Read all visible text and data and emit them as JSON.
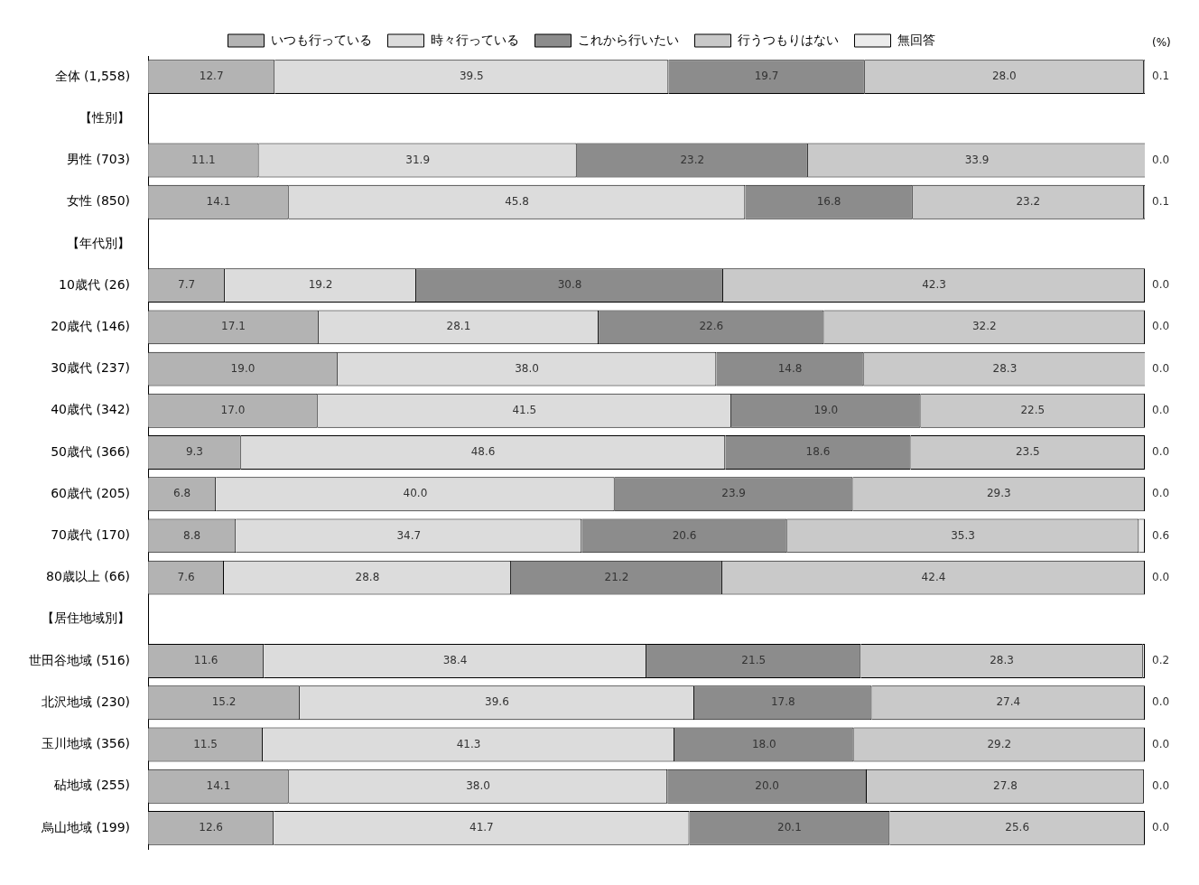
{
  "chart_data": {
    "type": "bar",
    "orientation": "horizontal",
    "stacked": true,
    "legend": "top",
    "grid": false,
    "xlim": [
      0,
      100
    ],
    "annotations": [
      "(%)"
    ],
    "categories": [
      "全体 (1,558)",
      "【性別】",
      "男性 (703)",
      "女性 (850)",
      "【年代別】",
      "10歳代 (26)",
      "20歳代 (146)",
      "30歳代 (237)",
      "40歳代 (342)",
      "50歳代 (366)",
      "60歳代 (205)",
      "70歳代 (170)",
      "80歳以上 (66)",
      "【居住地域別】",
      "世田谷地域 (516)",
      "北沢地域 (230)",
      "玉川地域 (356)",
      "砧地域 (255)",
      "烏山地域 (199)"
    ],
    "series": [
      {
        "name": "いつも行っている",
        "color": "#b3b3b3",
        "values": [
          12.7,
          null,
          11.1,
          14.1,
          null,
          7.7,
          17.1,
          19.0,
          17.0,
          9.3,
          6.8,
          8.8,
          7.6,
          null,
          11.6,
          15.2,
          11.5,
          14.1,
          12.6
        ],
        "value_labels": [
          "12.7",
          null,
          "11.1",
          "14.1",
          null,
          "7.7",
          "17.1",
          "19.0",
          "17.0",
          "9.3",
          "6.8",
          "8.8",
          "7.6",
          null,
          "11.6",
          "15.2",
          "11.5",
          "14.1",
          "12.6"
        ]
      },
      {
        "name": "時々行っている",
        "color": "#dcdcdc",
        "values": [
          39.5,
          null,
          31.9,
          45.8,
          null,
          19.2,
          28.1,
          38.0,
          41.5,
          48.6,
          40.0,
          34.7,
          28.8,
          null,
          38.4,
          39.6,
          41.3,
          38.0,
          41.7
        ],
        "value_labels": [
          "39.5",
          null,
          "31.9",
          "45.8",
          null,
          "19.2",
          "28.1",
          "38.0",
          "41.5",
          "48.6",
          "40.0",
          "34.7",
          "28.8",
          null,
          "38.4",
          "39.6",
          "41.3",
          "38.0",
          "41.7"
        ]
      },
      {
        "name": "これから行いたい",
        "color": "#8c8c8c",
        "values": [
          19.7,
          null,
          23.2,
          16.8,
          null,
          30.8,
          22.6,
          14.8,
          19.0,
          18.6,
          23.9,
          20.6,
          21.2,
          null,
          21.5,
          17.8,
          18.0,
          20.0,
          20.1
        ],
        "value_labels": [
          "19.7",
          null,
          "23.2",
          "16.8",
          null,
          "30.8",
          "22.6",
          "14.8",
          "19.0",
          "18.6",
          "23.9",
          "20.6",
          "21.2",
          null,
          "21.5",
          "17.8",
          "18.0",
          "20.0",
          "20.1"
        ]
      },
      {
        "name": "行うつもりはない",
        "color": "#c9c9c9",
        "values": [
          28.0,
          null,
          33.9,
          23.2,
          null,
          42.3,
          32.2,
          28.3,
          22.5,
          23.5,
          29.3,
          35.3,
          42.4,
          null,
          28.3,
          27.4,
          29.2,
          27.8,
          25.6
        ],
        "value_labels": [
          "28.0",
          null,
          "33.9",
          "23.2",
          null,
          "42.3",
          "32.2",
          "28.3",
          "22.5",
          "23.5",
          "29.3",
          "35.3",
          "42.4",
          null,
          "28.3",
          "27.4",
          "29.2",
          "27.8",
          "25.6"
        ]
      },
      {
        "name": "無回答",
        "color": "#ececec",
        "values": [
          0.1,
          null,
          0.0,
          0.1,
          null,
          0.0,
          0.0,
          0.0,
          0.0,
          0.0,
          0.0,
          0.6,
          0.0,
          null,
          0.2,
          0.0,
          0.0,
          0.0,
          0.0
        ],
        "value_labels": [
          "0.1",
          null,
          "0.0",
          "0.1",
          null,
          "0.0",
          "0.0",
          "0.0",
          "0.0",
          "0.0",
          "0.0",
          "0.6",
          "0.0",
          null,
          "0.2",
          "0.0",
          "0.0",
          "0.0",
          "0.0"
        ]
      }
    ]
  }
}
